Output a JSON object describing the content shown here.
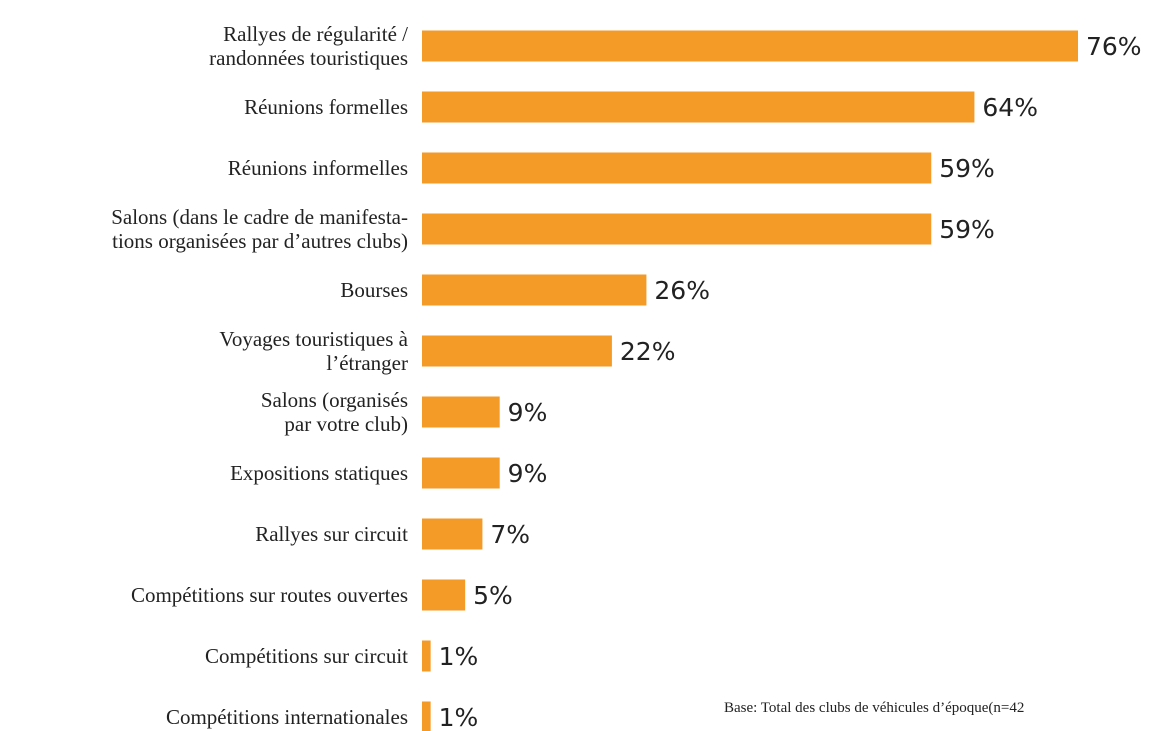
{
  "chart_data": {
    "type": "bar",
    "orientation": "horizontal",
    "categories": [
      "Rallyes de régularité /\nrandonnées touristiques",
      "Réunions formelles",
      "Réunions informelles",
      "Salons (dans le cadre de manifesta-\ntions organisées par d’autres clubs)",
      "Bourses",
      "Voyages touristiques à\nl’étranger",
      "Salons (organisés\npar votre club)",
      "Expositions statiques",
      "Rallyes sur circuit",
      "Compétitions sur routes ouvertes",
      "Compétitions sur circuit",
      "Compétitions internationales"
    ],
    "values": [
      76,
      64,
      59,
      59,
      26,
      22,
      9,
      9,
      7,
      5,
      1,
      1
    ],
    "value_labels": [
      "76%",
      "64%",
      "59%",
      "59%",
      "26%",
      "22%",
      "9%",
      "9%",
      "7%",
      "5%",
      "1%",
      "1%"
    ],
    "color": "#f39a27",
    "footnote": "Base: Total des clubs de véhicules d’époque(n=42"
  }
}
